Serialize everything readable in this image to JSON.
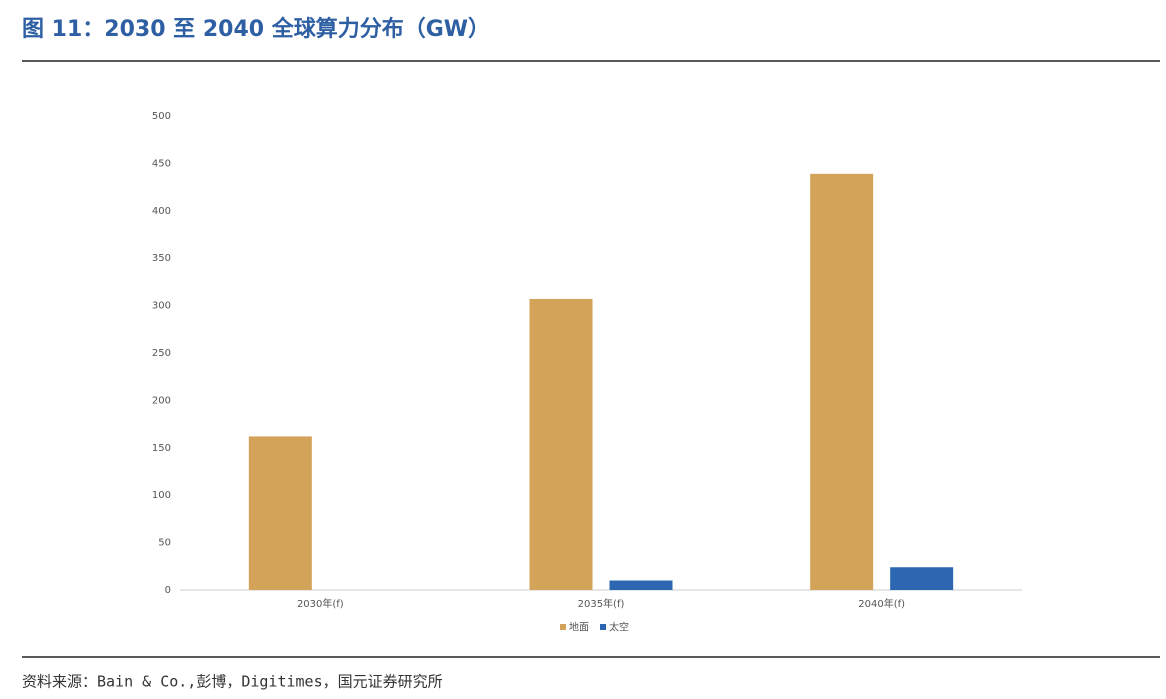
{
  "chart_data": {
    "type": "bar",
    "title": "图 11：2030 至 2040 全球算力分布（GW）",
    "source": "资料来源：Bain & Co.,彭博，Digitimes，国元证券研究所",
    "categories": [
      "2030年(f)",
      "2035年(f)",
      "2040年(f)"
    ],
    "series": [
      {
        "name": "地面",
        "color": "#d4a35a",
        "values": [
          162,
          307,
          439
        ]
      },
      {
        "name": "太空",
        "color": "#2e67b1",
        "values": [
          0,
          10,
          24
        ]
      }
    ],
    "ylim": [
      0,
      500
    ],
    "yticks": [
      0,
      50,
      100,
      150,
      200,
      250,
      300,
      350,
      400,
      450,
      500
    ],
    "grid": false,
    "legend": "bottom"
  }
}
